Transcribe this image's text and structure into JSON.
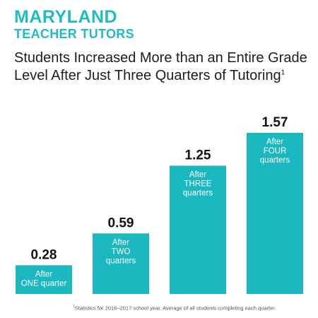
{
  "brand": {
    "line1": "MARYLAND",
    "line2": "TEACHER TUTORS",
    "color": "#20bcc2"
  },
  "chart_data": {
    "type": "bar",
    "title": "Students Increased More than an Entire Grade Level After Just Three Quarters of Tutoring",
    "title_marker": "1",
    "categories": [
      [
        "After",
        "ONE quarter"
      ],
      [
        "After",
        "TWO",
        "quarters"
      ],
      [
        "After",
        "THREE",
        "quarters"
      ],
      [
        "After",
        "FOUR",
        "quarters"
      ]
    ],
    "values": [
      0.28,
      0.59,
      1.25,
      1.57
    ],
    "value_labels": [
      "0.28",
      "0.59",
      "1.25",
      "1.57"
    ],
    "ylim": [
      0,
      1.57
    ],
    "bar_color": "#1bb8bf",
    "label_color": "#ffffff",
    "grid": false,
    "legend": "none"
  },
  "footnote": {
    "marker": "1",
    "text": "Statistics for 2016–2017 school year. Average of all students completing each quarter."
  }
}
